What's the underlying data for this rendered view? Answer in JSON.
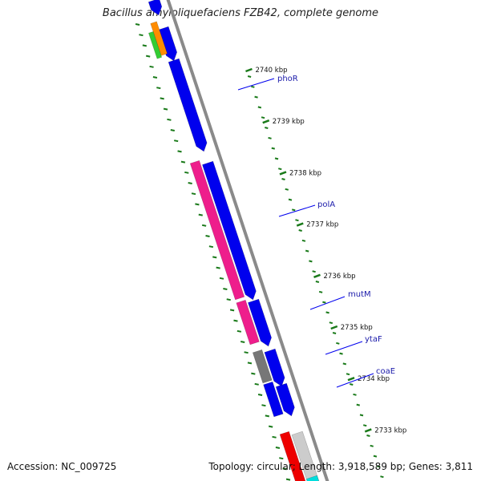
{
  "title": "Bacillus amyloliquefaciens FZB42, complete genome",
  "footer": {
    "accession": "Accession: NC_009725",
    "info": "Topology: circular; Length: 3,918,589 bp; Genes: 3,811"
  },
  "colors": {
    "gene_forward": "#0000ee",
    "gene_blue_dark": "#000066",
    "gene_pink": "#ee1e8c",
    "gene_gray": "#777777",
    "gene_light_gray": "#cccccc",
    "gene_red": "#ee0000",
    "gene_orange": "#ff8c00",
    "gene_green": "#33cc33",
    "gene_cyan": "#00dddd",
    "backbone": "#8a8a8a",
    "tick": "#1a7a1a",
    "label_line": "#0000ee",
    "label_text": "#1a1aaa"
  },
  "ticks": [
    {
      "kbp": 2740,
      "label": "2740 kbp"
    },
    {
      "kbp": 2739,
      "label": "2739 kbp"
    },
    {
      "kbp": 2738,
      "label": "2738 kbp"
    },
    {
      "kbp": 2737,
      "label": "2737 kbp"
    },
    {
      "kbp": 2736,
      "label": "2736 kbp"
    },
    {
      "kbp": 2735,
      "label": "2735 kbp"
    },
    {
      "kbp": 2734,
      "label": "2734 kbp"
    },
    {
      "kbp": 2733,
      "label": "2733 kbp"
    }
  ],
  "gene_labels": [
    {
      "name": "phoR"
    },
    {
      "name": "polA"
    },
    {
      "name": "mutM"
    },
    {
      "name": "ytaF"
    },
    {
      "name": "coaE"
    }
  ]
}
